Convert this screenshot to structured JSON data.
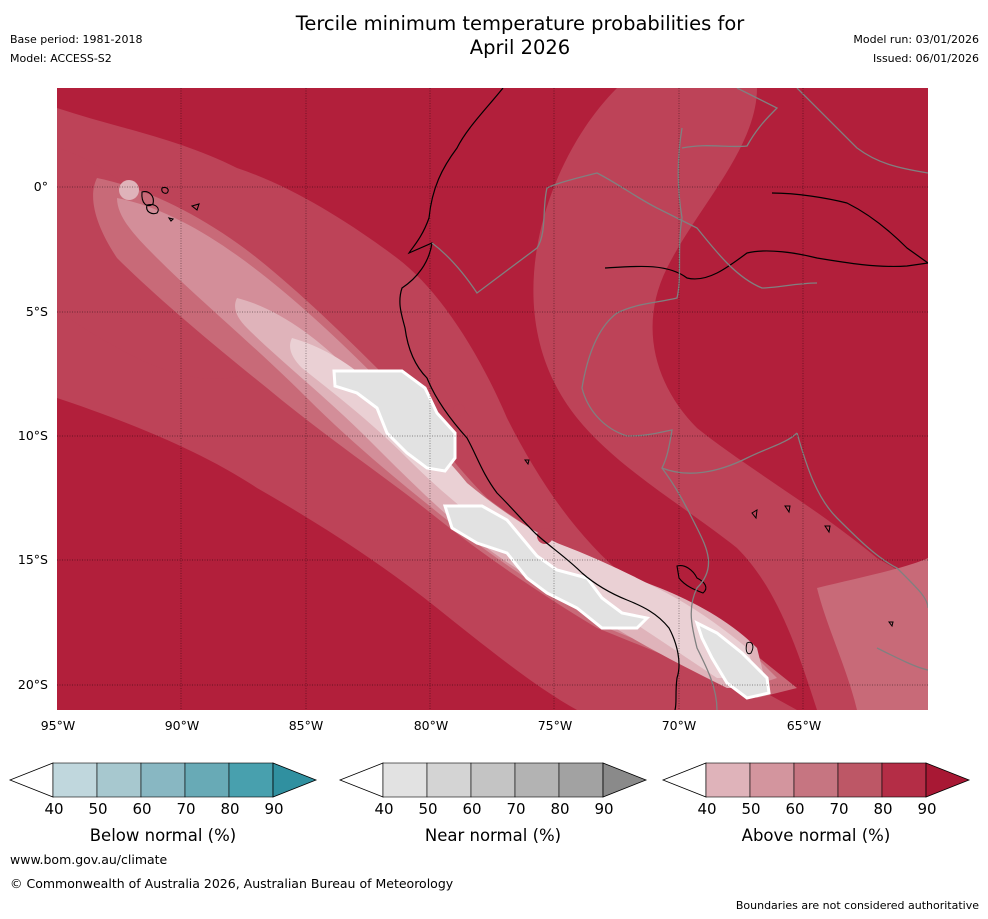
{
  "header": {
    "title_line1": "Tercile minimum temperature probabilities for",
    "title_line2": "April 2026",
    "base_period": "Base period: 1981-2018",
    "model": "Model: ACCESS-S2",
    "model_run": "Model run: 03/01/2026",
    "issued": "Issued: 06/01/2026"
  },
  "map": {
    "lat_ticks": [
      "0°",
      "5°S",
      "10°S",
      "15°S",
      "20°S"
    ],
    "lon_ticks": [
      "95°W",
      "90°W",
      "85°W",
      "80°W",
      "75°W",
      "70°W",
      "65°W"
    ],
    "colors": {
      "ocean_base": "#b21f3b",
      "land_base": "#b21f3b",
      "coastline": "#000000",
      "borders": "#808080",
      "gridline": "#000000"
    }
  },
  "legend": {
    "below": {
      "label": "Below normal (%)",
      "ticks": [
        "40",
        "50",
        "60",
        "70",
        "80",
        "90"
      ],
      "colors": [
        "#c0d7dd",
        "#a7c8cf",
        "#88b7c2",
        "#68aab6",
        "#48a0ae",
        "#3090a0"
      ]
    },
    "near": {
      "label": "Near normal (%)",
      "ticks": [
        "40",
        "50",
        "60",
        "70",
        "80",
        "90"
      ],
      "colors": [
        "#e2e2e2",
        "#d4d4d4",
        "#c4c4c4",
        "#b3b3b3",
        "#a2a2a2",
        "#8a8a8a"
      ]
    },
    "above": {
      "label": "Above normal (%)",
      "ticks": [
        "40",
        "50",
        "60",
        "70",
        "80",
        "90"
      ],
      "colors": [
        "#dfb3ba",
        "#d3959e",
        "#c67581",
        "#bd5766",
        "#b42d46",
        "#a81834"
      ]
    }
  },
  "footer": {
    "url": "www.bom.gov.au/climate",
    "copyright": "© Commonwealth of Australia 2026, Australian Bureau of Meteorology",
    "disclaimer": "Boundaries are not considered authoritative"
  }
}
